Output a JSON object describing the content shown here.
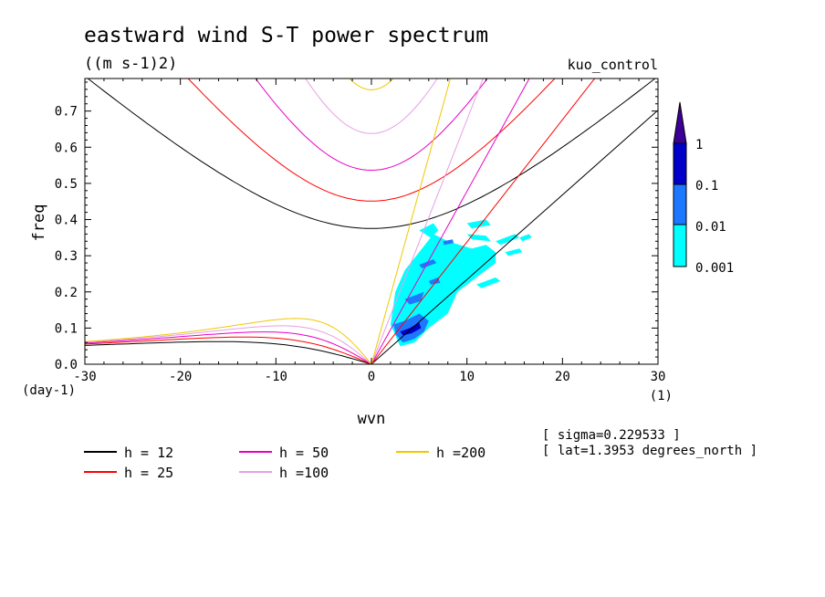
{
  "chart_data": {
    "type": "contour",
    "title": "eastward wind S-T power spectrum",
    "subtitle": "((m s-1)2)",
    "dataset_label": "kuo_control",
    "xlabel": "wvn",
    "ylabel": "freq",
    "x_units": "(1)",
    "y_units": "(day-1)",
    "xlim": [
      -30,
      30
    ],
    "ylim": [
      0,
      0.79
    ],
    "x_ticks": [
      "-30",
      "-20",
      "-10",
      "0",
      "10",
      "20",
      "30"
    ],
    "y_ticks": [
      "0.0",
      "0.1",
      "0.2",
      "0.3",
      "0.4",
      "0.5",
      "0.6",
      "0.7"
    ],
    "colorbar": {
      "levels": [
        "0.001",
        "0.01",
        "0.1",
        "1"
      ],
      "colors": [
        "#00ffff",
        "#1e78ff",
        "#0000c8",
        "#3c0096"
      ]
    },
    "dispersion_curves": [
      {
        "label": "h = 12",
        "h": 12,
        "color": "#000000"
      },
      {
        "label": "h = 25",
        "h": 25,
        "color": "#ff0000"
      },
      {
        "label": "h = 50",
        "h": 50,
        "color": "#e600c8"
      },
      {
        "label": "h =100",
        "h": 100,
        "color": "#e6a0e6"
      },
      {
        "label": "h =200",
        "h": 200,
        "color": "#f0c800"
      }
    ],
    "notes": [
      "[ sigma=0.229533 ]",
      "[ lat=1.3953 degrees_north ]"
    ],
    "spectrum_patches": [
      {
        "level": 0,
        "pts": [
          [
            3.5,
            0.26
          ],
          [
            6.5,
            0.36
          ],
          [
            8,
            0.34
          ],
          [
            10.5,
            0.32
          ],
          [
            12,
            0.33
          ],
          [
            13,
            0.31
          ],
          [
            13,
            0.28
          ],
          [
            11,
            0.24
          ],
          [
            9,
            0.2
          ],
          [
            8,
            0.14
          ],
          [
            6,
            0.1
          ],
          [
            4.5,
            0.06
          ],
          [
            3,
            0.05
          ],
          [
            2,
            0.11
          ],
          [
            2.5,
            0.2
          ]
        ]
      },
      {
        "level": 0,
        "pts": [
          [
            5,
            0.37
          ],
          [
            6.5,
            0.39
          ],
          [
            7,
            0.37
          ],
          [
            6.2,
            0.35
          ]
        ]
      },
      {
        "level": 0,
        "pts": [
          [
            10,
            0.39
          ],
          [
            12,
            0.4
          ],
          [
            12.5,
            0.385
          ],
          [
            10.5,
            0.375
          ]
        ]
      },
      {
        "level": 0,
        "pts": [
          [
            10,
            0.36
          ],
          [
            12,
            0.355
          ],
          [
            12.5,
            0.34
          ],
          [
            10.5,
            0.345
          ]
        ]
      },
      {
        "level": 0,
        "pts": [
          [
            13,
            0.34
          ],
          [
            15,
            0.36
          ],
          [
            15.5,
            0.35
          ],
          [
            13.5,
            0.33
          ]
        ]
      },
      {
        "level": 0,
        "pts": [
          [
            14,
            0.31
          ],
          [
            15.5,
            0.32
          ],
          [
            15.8,
            0.31
          ],
          [
            14.3,
            0.3
          ]
        ]
      },
      {
        "level": 0,
        "pts": [
          [
            15.5,
            0.35
          ],
          [
            16.5,
            0.36
          ],
          [
            16.8,
            0.35
          ],
          [
            15.8,
            0.34
          ]
        ]
      },
      {
        "level": 0,
        "pts": [
          [
            11,
            0.22
          ],
          [
            13,
            0.24
          ],
          [
            13.5,
            0.23
          ],
          [
            11.5,
            0.21
          ]
        ]
      },
      {
        "level": 1,
        "pts": [
          [
            2.3,
            0.11
          ],
          [
            3.5,
            0.12
          ],
          [
            5,
            0.14
          ],
          [
            6,
            0.12
          ],
          [
            5.5,
            0.09
          ],
          [
            4.5,
            0.07
          ],
          [
            3.3,
            0.06
          ],
          [
            2.6,
            0.08
          ]
        ]
      },
      {
        "level": 1,
        "pts": [
          [
            3.5,
            0.18
          ],
          [
            4.5,
            0.19
          ],
          [
            5.5,
            0.2
          ],
          [
            5.2,
            0.175
          ],
          [
            4,
            0.165
          ]
        ]
      },
      {
        "level": 1,
        "pts": [
          [
            6,
            0.23
          ],
          [
            7,
            0.24
          ],
          [
            7.2,
            0.225
          ],
          [
            6.2,
            0.22
          ]
        ]
      },
      {
        "level": 1,
        "pts": [
          [
            5,
            0.275
          ],
          [
            6.5,
            0.29
          ],
          [
            6.8,
            0.28
          ],
          [
            5.3,
            0.265
          ]
        ]
      },
      {
        "level": 1,
        "pts": [
          [
            7.5,
            0.34
          ],
          [
            8.5,
            0.345
          ],
          [
            8.6,
            0.335
          ],
          [
            7.6,
            0.33
          ]
        ]
      },
      {
        "level": 2,
        "pts": [
          [
            3,
            0.09
          ],
          [
            4,
            0.1
          ],
          [
            5,
            0.115
          ],
          [
            5.2,
            0.1
          ],
          [
            4.2,
            0.085
          ],
          [
            3.3,
            0.08
          ]
        ]
      }
    ]
  }
}
